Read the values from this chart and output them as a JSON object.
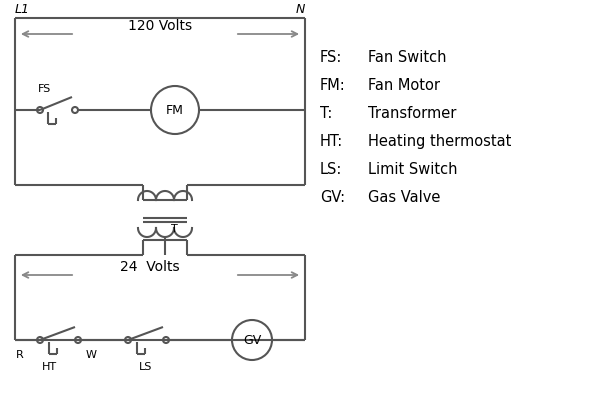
{
  "bg_color": "#ffffff",
  "line_color": "#555555",
  "arrow_color": "#888888",
  "text_color": "#000000",
  "legend": [
    [
      "FS:",
      "Fan Switch"
    ],
    [
      "FM:",
      "Fan Motor"
    ],
    [
      "T:",
      "Transformer"
    ],
    [
      "HT:",
      "Heating thermostat"
    ],
    [
      "LS:",
      "Limit Switch"
    ],
    [
      "GV:",
      "Gas Valve"
    ]
  ],
  "lw": 1.5,
  "fig_w": 5.9,
  "fig_h": 4.0,
  "dpi": 100
}
